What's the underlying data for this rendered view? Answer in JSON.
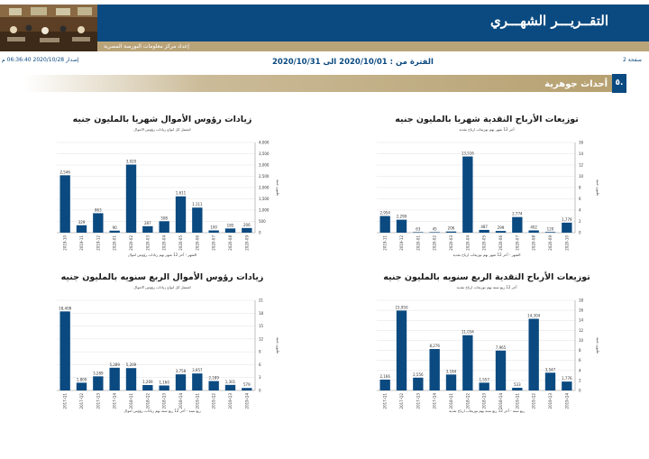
{
  "header": {
    "title": "التقــريـــر الشهـــري",
    "ribbon": "إعداد مركز معلومات البورصة المصرية",
    "page": "صفحة 2",
    "issued": "إصدار 2020/10/28 06:36:40 م",
    "period": "الفترة من : 2020/10/01 الى 2020/10/31"
  },
  "section": {
    "number": "٥.",
    "title": "أحداث جوهرية"
  },
  "colors": {
    "bar": "#0b4a80",
    "banner": "#0b4a80",
    "ribbon": "#b9a378"
  },
  "chart_data": [
    {
      "type": "bar",
      "title": "زيادات رؤوس الأموال شهريا بالمليون جنيه",
      "subtitle": "اشتمل كل انواع زيادات رؤوس الاموال",
      "xlabel": "الشهر - آخر 12 شهر بهم زيادات رؤوس اموال",
      "ylabel": "مليون جنيه",
      "categories": [
        "2019-10",
        "2019-11",
        "2019-12",
        "2020-01",
        "2020-02",
        "2020-03",
        "2020-04",
        "2020-05",
        "2020-06",
        "2020-07",
        "2020-08",
        "2020-09"
      ],
      "values": [
        2546,
        329,
        863,
        90,
        3020,
        287,
        508,
        1611,
        1111,
        100,
        185,
        206
      ],
      "ylim": [
        0,
        4000
      ],
      "yticks": [
        0,
        500,
        1000,
        1500,
        2000,
        2500,
        3000,
        3500,
        4000
      ],
      "ytick_labels": [
        "0",
        "500",
        "1,000",
        "1,500",
        "2,000",
        "2,500",
        "3,000",
        "3,500",
        "4,000"
      ],
      "value_labels": [
        "2,546",
        "329",
        "863",
        "90",
        "3,020",
        "287",
        "508",
        "1,611",
        "1,111",
        "100",
        "185",
        "206"
      ]
    },
    {
      "type": "bar",
      "title": "توزيعات الأرباح النقدية شهريا بالمليون جنيه",
      "subtitle": "آخر 12 شهر بهم توزيعات ارباح نقدية",
      "xlabel": "الشهر - آخر 12 شهر بهم توزيعات ارباح نقدية",
      "ylabel": "مليون جنيه",
      "categories": [
        "2019-11",
        "2019-12",
        "2020-01",
        "2020-02",
        "2020-03",
        "2020-04",
        "2020-05",
        "2020-06",
        "2020-07",
        "2020-08",
        "2020-09",
        "2020-10"
      ],
      "values": [
        2954,
        2299,
        63,
        45,
        206,
        13516,
        487,
        299,
        2774,
        402,
        120,
        1779
      ],
      "ylim": [
        0,
        16000
      ],
      "yticks": [
        0,
        2000,
        4000,
        6000,
        8000,
        10000,
        12000,
        14000,
        16000
      ],
      "ytick_labels": [
        "0",
        "2",
        "4",
        "6",
        "8",
        "10",
        "12",
        "14",
        "16"
      ],
      "value_labels": [
        "2,954",
        "2,299",
        "63",
        "45",
        "206",
        "13,516",
        "487",
        "299",
        "2,774",
        "402",
        "120",
        "1,779"
      ]
    },
    {
      "type": "bar",
      "title": "زيادات رؤوس الأموال الربع سنويه بالمليون جنيه",
      "subtitle": "اشتمل كل انواع زيادات رؤوس الاموال",
      "xlabel": "ربع سنه - آخر 12 ربع سنه بهم زيادات رؤوس اموال",
      "ylabel": "مليون جنيه",
      "categories": [
        "2017-Q1",
        "2017-Q2",
        "2017-Q3",
        "2017-Q4",
        "2018-Q1",
        "2018-Q2",
        "2018-Q3",
        "2018-Q4",
        "2019-Q1",
        "2019-Q2",
        "2019-Q3",
        "2019-Q4"
      ],
      "values": [
        18408,
        1809,
        3289,
        5289,
        5209,
        1269,
        1160,
        3758,
        3957,
        2189,
        1301,
        579
      ],
      "ylim": [
        0,
        21000
      ],
      "yticks": [
        0,
        3000,
        6000,
        9000,
        12000,
        15000,
        18000,
        21000
      ],
      "ytick_labels": [
        "0",
        "3",
        "6",
        "9",
        "12",
        "15",
        "18",
        "21"
      ],
      "value_labels": [
        "18,408",
        "1,809",
        "3,289",
        "5,289",
        "5,209",
        "1,269",
        "1,160",
        "3,758",
        "3,957",
        "2,189",
        "1,301",
        "579"
      ]
    },
    {
      "type": "bar",
      "title": "توزيعات الأرباح النقدية الربع سنويه بالمليون جنيه",
      "subtitle": "آخر 12 ربع سنه بهم توزيعات ارباح نقدية",
      "xlabel": "ربع سنه - آخر 12 ربع سنه بهم توزيعات ارباح نقدية",
      "ylabel": "مليون جنيه",
      "categories": [
        "2017-Q1",
        "2017-Q2",
        "2017-Q3",
        "2017-Q4",
        "2018-Q1",
        "2018-Q2",
        "2018-Q3",
        "2018-Q4",
        "2019-Q1",
        "2019-Q2",
        "2019-Q3",
        "2019-Q4"
      ],
      "values": [
        2166,
        15950,
        2556,
        8276,
        3184,
        11034,
        1557,
        7965,
        533,
        14304,
        3547,
        1776
      ],
      "ylim": [
        0,
        18000
      ],
      "yticks": [
        0,
        2000,
        4000,
        6000,
        8000,
        10000,
        12000,
        14000,
        16000,
        18000
      ],
      "ytick_labels": [
        "0",
        "2",
        "4",
        "6",
        "8",
        "10",
        "12",
        "14",
        "16",
        "18"
      ],
      "value_labels": [
        "2,166",
        "15,950",
        "2,556",
        "8,276",
        "3,184",
        "11,034",
        "1,557",
        "7,965",
        "533",
        "14,304",
        "3,547",
        "1,776"
      ]
    }
  ]
}
